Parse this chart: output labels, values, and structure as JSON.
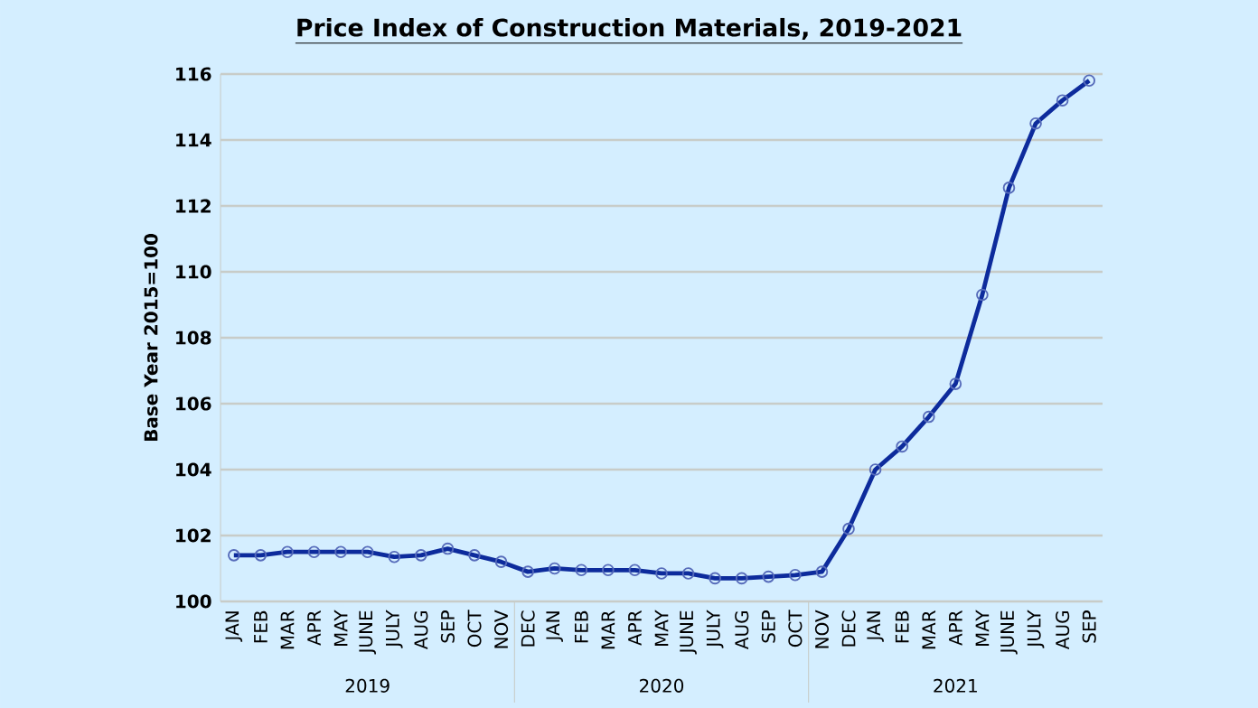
{
  "chart_data": {
    "type": "line",
    "title": "Price Index of Construction Materials, 2019-2021",
    "ylabel": "Base Year 2015=100",
    "categories": [
      "JAN",
      "FEB",
      "MAR",
      "APR",
      "MAY",
      "JUNE",
      "JULY",
      "AUG",
      "SEP",
      "OCT",
      "NOV",
      "DEC",
      "JAN",
      "FEB",
      "MAR",
      "APR",
      "MAY",
      "JUNE",
      "JULY",
      "AUG",
      "SEP",
      "OCT",
      "NOV",
      "DEC",
      "JAN",
      "FEB",
      "MAR",
      "APR",
      "MAY",
      "JUNE",
      "JULY",
      "AUG",
      "SEP"
    ],
    "series": [
      {
        "color": "#0d2b9c",
        "values": [
          101.4,
          101.4,
          101.5,
          101.5,
          101.5,
          101.5,
          101.35,
          101.4,
          101.6,
          101.4,
          101.2,
          100.9,
          101.0,
          100.95,
          100.95,
          100.95,
          100.85,
          100.85,
          100.7,
          100.7,
          100.75,
          100.8,
          100.9,
          102.2,
          104.0,
          104.7,
          105.6,
          106.6,
          109.3,
          112.55,
          114.5,
          115.2,
          115.8
        ]
      }
    ],
    "ylim": [
      100,
      116
    ],
    "yticks": [
      100,
      102,
      104,
      106,
      108,
      110,
      112,
      114,
      116
    ],
    "grid": "y",
    "marker": "circle",
    "line_style": "solid",
    "annotations": [
      "2019",
      "2020",
      "2021"
    ]
  }
}
